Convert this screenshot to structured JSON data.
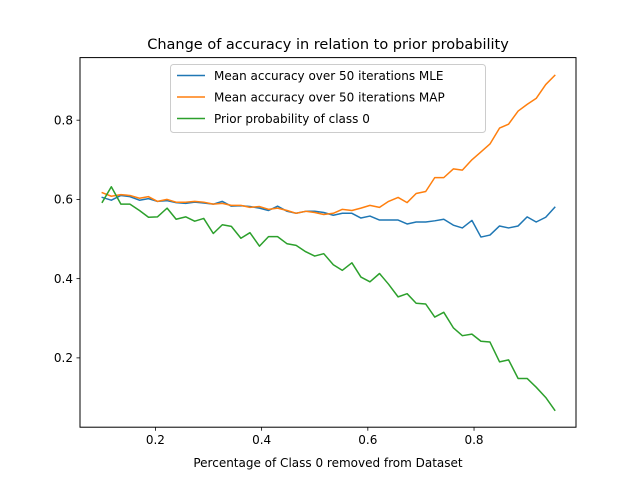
{
  "chart_data": {
    "type": "line",
    "title": "Change of accuracy in relation to prior probability",
    "xlabel": "Percentage of Class 0 removed from Dataset",
    "ylabel": "",
    "xlim": [
      0.058,
      0.992
    ],
    "ylim": [
      0.025,
      0.958
    ],
    "x_ticks": [
      0.2,
      0.4,
      0.6,
      0.8
    ],
    "x_tick_labels": [
      "0.2",
      "0.4",
      "0.6",
      "0.8"
    ],
    "y_ticks": [
      0.2,
      0.4,
      0.6,
      0.8
    ],
    "y_tick_labels": [
      "0.2",
      "0.4",
      "0.6",
      "0.8"
    ],
    "grid": false,
    "legend_position": "upper-center",
    "x": [
      0.1,
      0.117,
      0.135,
      0.152,
      0.17,
      0.187,
      0.204,
      0.222,
      0.239,
      0.257,
      0.274,
      0.291,
      0.309,
      0.326,
      0.343,
      0.361,
      0.378,
      0.396,
      0.413,
      0.43,
      0.448,
      0.465,
      0.483,
      0.5,
      0.517,
      0.535,
      0.552,
      0.57,
      0.587,
      0.604,
      0.622,
      0.639,
      0.657,
      0.674,
      0.691,
      0.709,
      0.726,
      0.743,
      0.761,
      0.778,
      0.796,
      0.813,
      0.83,
      0.848,
      0.865,
      0.883,
      0.9,
      0.917,
      0.935,
      0.952
    ],
    "series": [
      {
        "name": "Mean accuracy over 50 iterations MLE",
        "color": "#1f77b4",
        "values": [
          0.605,
          0.598,
          0.61,
          0.607,
          0.598,
          0.602,
          0.595,
          0.597,
          0.592,
          0.59,
          0.593,
          0.591,
          0.588,
          0.595,
          0.583,
          0.584,
          0.582,
          0.578,
          0.572,
          0.583,
          0.57,
          0.565,
          0.57,
          0.57,
          0.567,
          0.56,
          0.565,
          0.565,
          0.553,
          0.558,
          0.548,
          0.548,
          0.548,
          0.538,
          0.543,
          0.543,
          0.546,
          0.55,
          0.535,
          0.528,
          0.547,
          0.505,
          0.51,
          0.533,
          0.528,
          0.533,
          0.556,
          0.543,
          0.555,
          0.58
        ]
      },
      {
        "name": "Mean accuracy over 50 iterations MAP",
        "color": "#ff7f0e",
        "values": [
          0.617,
          0.608,
          0.612,
          0.61,
          0.603,
          0.607,
          0.595,
          0.6,
          0.593,
          0.593,
          0.595,
          0.593,
          0.588,
          0.59,
          0.585,
          0.585,
          0.58,
          0.582,
          0.575,
          0.578,
          0.572,
          0.565,
          0.57,
          0.567,
          0.562,
          0.565,
          0.575,
          0.572,
          0.578,
          0.585,
          0.58,
          0.595,
          0.605,
          0.592,
          0.615,
          0.62,
          0.655,
          0.655,
          0.677,
          0.674,
          0.7,
          0.72,
          0.74,
          0.78,
          0.79,
          0.823,
          0.84,
          0.855,
          0.89,
          0.913
        ]
      },
      {
        "name": "Prior probability of class 0",
        "color": "#2ca02c",
        "values": [
          0.593,
          0.632,
          0.588,
          0.588,
          0.572,
          0.555,
          0.556,
          0.578,
          0.55,
          0.556,
          0.545,
          0.552,
          0.514,
          0.536,
          0.532,
          0.502,
          0.516,
          0.482,
          0.506,
          0.506,
          0.488,
          0.484,
          0.468,
          0.457,
          0.463,
          0.435,
          0.421,
          0.44,
          0.404,
          0.392,
          0.413,
          0.386,
          0.354,
          0.362,
          0.338,
          0.336,
          0.303,
          0.315,
          0.276,
          0.256,
          0.26,
          0.242,
          0.24,
          0.19,
          0.195,
          0.148,
          0.148,
          0.126,
          0.1,
          0.068
        ]
      }
    ]
  }
}
